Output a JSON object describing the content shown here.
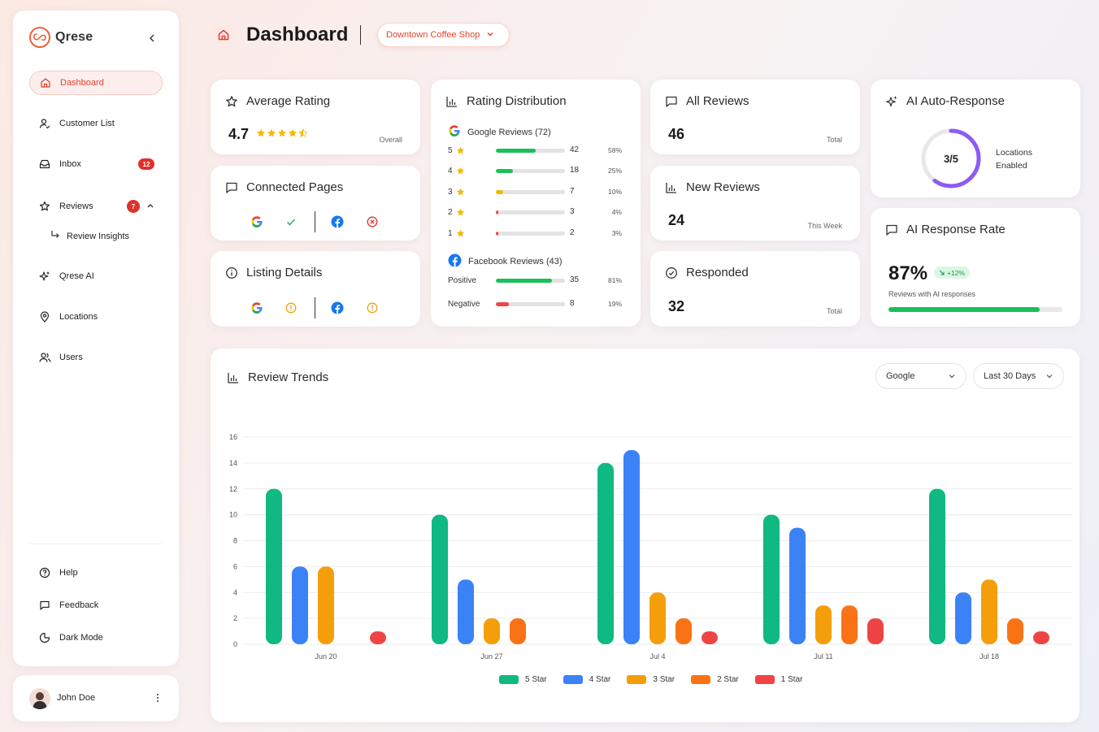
{
  "sidebar": {
    "brand": "Qrese",
    "items": [
      {
        "label": "Dashboard",
        "icon": "home-icon"
      },
      {
        "label": "Customer List",
        "icon": "user-check-icon"
      },
      {
        "label": "Inbox",
        "icon": "inbox-icon",
        "badge": "12"
      },
      {
        "label": "Reviews",
        "icon": "star-icon",
        "badge": "7"
      },
      {
        "label": "Review Insights",
        "icon": "corner-arrow-icon"
      },
      {
        "label": "Qrese AI",
        "icon": "sparkles-icon"
      },
      {
        "label": "Locations",
        "icon": "map-pin-icon"
      },
      {
        "label": "Users",
        "icon": "users-icon"
      }
    ],
    "footer_items": [
      {
        "label": "Help",
        "icon": "help-circle-icon"
      },
      {
        "label": "Feedback",
        "icon": "message-square-icon"
      },
      {
        "label": "Dark Mode",
        "icon": "moon-icon"
      }
    ]
  },
  "user": {
    "name": "John Doe"
  },
  "header": {
    "title": "Dashboard",
    "location": "Downtown Coffee Shop"
  },
  "average_rating": {
    "title": "Average Rating",
    "value": "4.7",
    "stars": 4.5,
    "label": "Overall"
  },
  "connected_pages": {
    "title": "Connected Pages"
  },
  "listing_details": {
    "title": "Listing Details"
  },
  "rating_distribution": {
    "title": "Rating Distribution",
    "google": {
      "label": "Google Reviews (72)",
      "rows": [
        {
          "stars": "5",
          "count": "42",
          "pct": "58%",
          "fill": 0.58
        },
        {
          "stars": "4",
          "count": "18",
          "pct": "25%",
          "fill": 0.25
        },
        {
          "stars": "3",
          "count": "7",
          "pct": "10%",
          "fill": 0.1
        },
        {
          "stars": "2",
          "count": "3",
          "pct": "4%",
          "fill": 0.04
        },
        {
          "stars": "1",
          "count": "2",
          "pct": "3%",
          "fill": 0.03
        }
      ]
    },
    "facebook": {
      "label": "Facebook Reviews (43)",
      "rows": [
        {
          "label": "Positive",
          "count": "35",
          "pct": "81%",
          "fill": 0.81
        },
        {
          "label": "Negative",
          "count": "8",
          "pct": "19%",
          "fill": 0.19
        }
      ]
    }
  },
  "all_reviews": {
    "title": "All Reviews",
    "value": "46",
    "label": "Total"
  },
  "new_reviews": {
    "title": "New Reviews",
    "value": "24",
    "label": "This Week"
  },
  "responded": {
    "title": "Responded",
    "value": "32",
    "label": "Total"
  },
  "ai_auto_response": {
    "title": "AI Auto-Response",
    "ratio": "3/5",
    "enabled": 3,
    "total": 5,
    "label_line1": "Locations",
    "label_line2": "Enabled"
  },
  "ai_response_rate": {
    "title": "AI Response Rate",
    "value": "87%",
    "fill": 0.87,
    "change": "+12%",
    "subtitle": "Reviews with AI responses"
  },
  "review_trends": {
    "title": "Review Trends",
    "platform": "Google",
    "range": "Last 30 Days"
  },
  "colors": {
    "accent": "#e0432e",
    "five_star": "#10b981",
    "four_star": "#3b82f6",
    "three_star": "#f59e0b",
    "two_star": "#f97316",
    "one_star": "#ef4444",
    "good": "#18c05a"
  },
  "chart_data": {
    "type": "bar",
    "categories": [
      "Jun 20",
      "Jun 27",
      "Jul 4",
      "Jul 11",
      "Jul 18"
    ],
    "series": [
      {
        "name": "5 Star",
        "color": "#10b981",
        "values": [
          12,
          10,
          14,
          10,
          12
        ]
      },
      {
        "name": "4 Star",
        "color": "#3b82f6",
        "values": [
          6,
          5,
          15,
          9,
          4
        ]
      },
      {
        "name": "3 Star",
        "color": "#f59e0b",
        "values": [
          6,
          2,
          4,
          3,
          5
        ]
      },
      {
        "name": "2 Star",
        "color": "#f97316",
        "values": [
          0,
          2,
          2,
          3,
          2
        ]
      },
      {
        "name": "1 Star",
        "color": "#ef4444",
        "values": [
          1,
          0,
          1,
          2,
          1
        ]
      }
    ],
    "y_ticks": [
      "0",
      "2",
      "4",
      "6",
      "8",
      "10",
      "12",
      "14",
      "16"
    ],
    "ylim": [
      0,
      16
    ],
    "grid": true,
    "legend": "bottom-center"
  }
}
